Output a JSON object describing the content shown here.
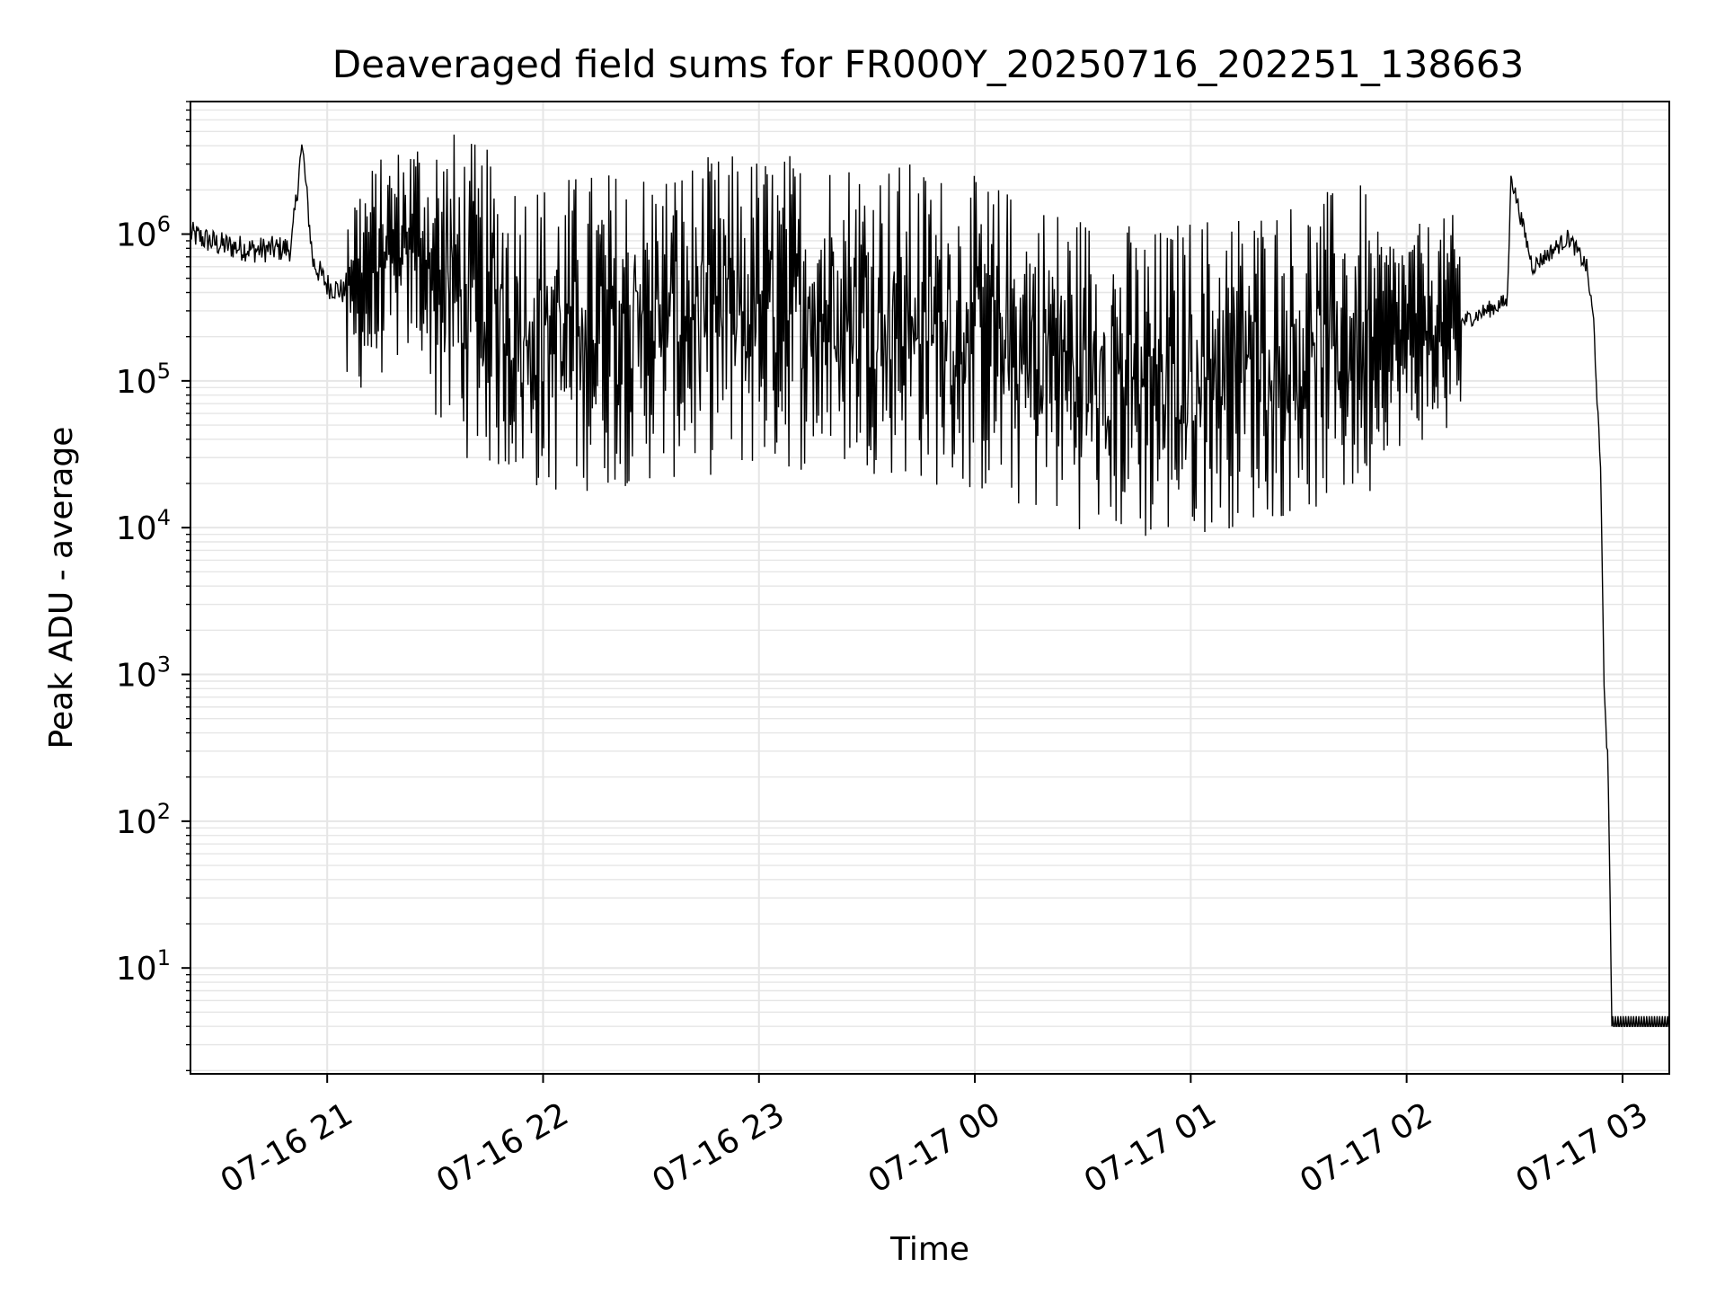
{
  "chart_data": {
    "type": "line",
    "title": "Deaveraged field sums for FR000Y_20250716_202251_138663",
    "xlabel": "Time",
    "ylabel": "Peak ADU - average",
    "y_scale": "log",
    "grid": true,
    "xlim": [
      "2025-07-16 20:22",
      "2025-07-17 03:13"
    ],
    "ylim": [
      1.9,
      8000000
    ],
    "x_ticks": [
      "07-16 21",
      "07-16 22",
      "07-16 23",
      "07-17 00",
      "07-17 01",
      "07-17 02",
      "07-17 03"
    ],
    "y_ticks": [
      10,
      100,
      1000,
      10000,
      100000,
      1000000
    ],
    "line_color": "#000000",
    "series": [
      {
        "x": [
          "2025-07-16 20:22",
          "2025-07-16 20:30",
          "2025-07-16 20:40",
          "2025-07-16 20:50",
          "2025-07-16 20:53",
          "2025-07-16 20:56",
          "2025-07-16 21:00",
          "2025-07-16 21:05",
          "2025-07-16 21:15",
          "2025-07-16 21:25",
          "2025-07-16 21:30",
          "2025-07-16 21:45",
          "2025-07-16 22:00",
          "2025-07-16 22:30",
          "2025-07-16 23:00",
          "2025-07-16 23:30",
          "2025-07-17 00:00",
          "2025-07-17 00:30",
          "2025-07-17 00:50",
          "2025-07-17 01:00",
          "2025-07-17 01:30",
          "2025-07-17 02:00",
          "2025-07-17 02:15",
          "2025-07-17 02:28",
          "2025-07-17 02:29",
          "2025-07-17 02:35",
          "2025-07-17 02:45",
          "2025-07-17 02:50",
          "2025-07-17 02:52",
          "2025-07-17 02:54",
          "2025-07-17 02:55",
          "2025-07-17 02:56",
          "2025-07-17 02:57",
          "2025-07-17 03:13"
        ],
        "y": [
          1000000,
          850000,
          780000,
          800000,
          4200000,
          650000,
          450000,
          400000,
          600000,
          900000,
          500000,
          300000,
          200000,
          250000,
          300000,
          300000,
          200000,
          120000,
          90000,
          110000,
          150000,
          200000,
          250000,
          350000,
          2500000,
          600000,
          950000,
          600000,
          250000,
          20000,
          600,
          250,
          4,
          4
        ]
      }
    ]
  }
}
